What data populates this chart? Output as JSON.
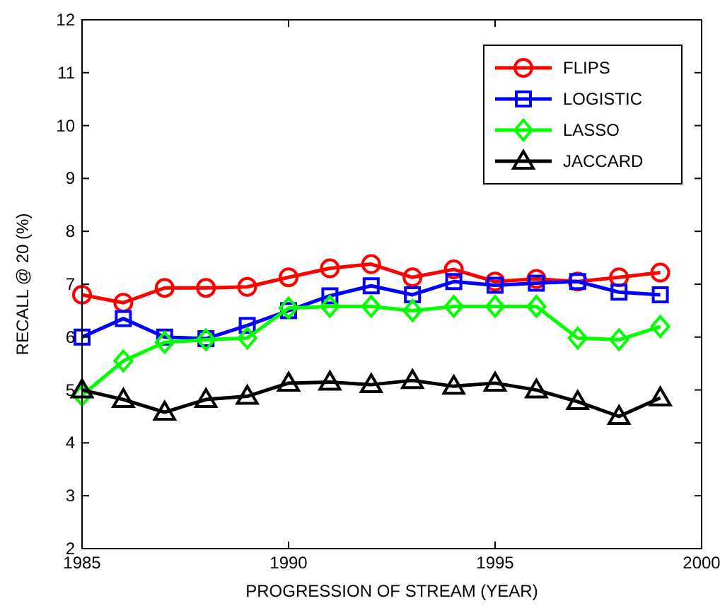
{
  "chart_data": {
    "type": "line",
    "xlabel": "PROGRESSION OF STREAM (YEAR)",
    "ylabel": "RECALL @ 20 (%)",
    "x": [
      1985,
      1986,
      1987,
      1988,
      1989,
      1990,
      1991,
      1992,
      1993,
      1994,
      1995,
      1996,
      1997,
      1998,
      1999
    ],
    "xlim": [
      1985,
      2000
    ],
    "xticks": [
      1985,
      1990,
      1995,
      2000
    ],
    "ylim": [
      2,
      12
    ],
    "yticks": [
      2,
      3,
      4,
      5,
      6,
      7,
      8,
      9,
      10,
      11,
      12
    ],
    "legend": "top right",
    "grid": false,
    "line_style": "solid",
    "series": [
      {
        "name": "FLIPS",
        "color": "#ff0000",
        "marker": "circle",
        "values": [
          6.8,
          6.65,
          6.93,
          6.93,
          6.95,
          7.13,
          7.3,
          7.38,
          7.13,
          7.28,
          7.05,
          7.1,
          7.05,
          7.13,
          7.22
        ]
      },
      {
        "name": "LOGISTIC",
        "color": "#0000ff",
        "marker": "square",
        "values": [
          6.0,
          6.35,
          6.0,
          5.97,
          6.22,
          6.5,
          6.78,
          6.97,
          6.8,
          7.05,
          6.98,
          7.02,
          7.05,
          6.85,
          6.8
        ]
      },
      {
        "name": "LASSO",
        "color": "#00ff00",
        "marker": "diamond",
        "values": [
          4.9,
          5.55,
          5.9,
          5.95,
          5.98,
          6.55,
          6.58,
          6.58,
          6.5,
          6.58,
          6.58,
          6.58,
          5.98,
          5.95,
          6.2
        ]
      },
      {
        "name": "JACCARD",
        "color": "#000000",
        "marker": "triangle",
        "values": [
          5.0,
          4.82,
          4.58,
          4.82,
          4.88,
          5.13,
          5.15,
          5.1,
          5.18,
          5.07,
          5.13,
          5.0,
          4.78,
          4.5,
          4.85
        ]
      }
    ]
  }
}
